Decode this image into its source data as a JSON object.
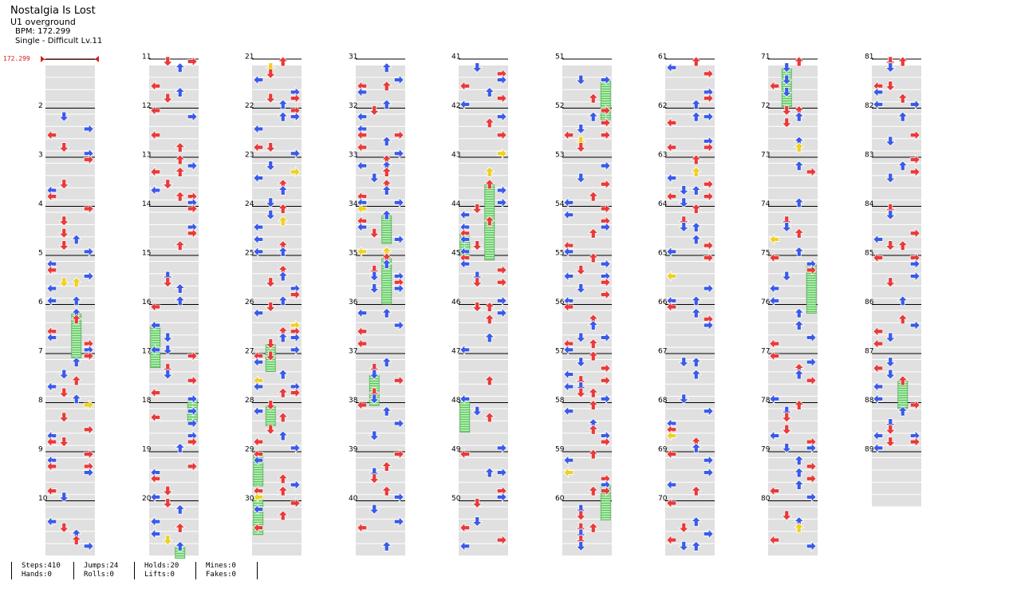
{
  "song": {
    "title": "Nostalgia Is Lost",
    "artist": "U1 overground",
    "bpm_text": "BPM: 172.299",
    "chart_text": "Single - Difficult Lv.11"
  },
  "bpm_marker": {
    "label": "172.299"
  },
  "layout": {
    "columns": 9,
    "measures_per_column": 10
  },
  "measure_numbers": [
    "",
    "2",
    "3",
    "4",
    "5",
    "6",
    "7",
    "8",
    "9",
    "10",
    "11",
    "12",
    "13",
    "14",
    "15",
    "16",
    "17",
    "18",
    "19",
    "20",
    "21",
    "22",
    "23",
    "24",
    "25",
    "26",
    "27",
    "28",
    "29",
    "30",
    "31",
    "32",
    "33",
    "34",
    "35",
    "36",
    "37",
    "38",
    "39",
    "40",
    "41",
    "42",
    "43",
    "44",
    "45",
    "46",
    "47",
    "48",
    "49",
    "50",
    "51",
    "52",
    "53",
    "54",
    "55",
    "56",
    "57",
    "58",
    "59",
    "60",
    "61",
    "62",
    "63",
    "64",
    "65",
    "66",
    "67",
    "68",
    "69",
    "70",
    "71",
    "72",
    "73",
    "74",
    "75",
    "76",
    "77",
    "78",
    "79",
    "80",
    "81",
    "82",
    "83",
    "84",
    "85",
    "86",
    "87",
    "88",
    "89"
  ],
  "note_colors": {
    "red": "#e83a3a",
    "blue": "#3a5ae8",
    "yellow": "#f0d020",
    "hold": "#8fe08f"
  },
  "stats": {
    "steps": "Steps:410",
    "hands": "Hands:0",
    "jumps": "Jumps:24",
    "rolls": "Rolls:0",
    "holds": "Holds:20",
    "lifts": "Lifts:0",
    "mines": "Mines:0",
    "fakes": "Fakes:0"
  }
}
